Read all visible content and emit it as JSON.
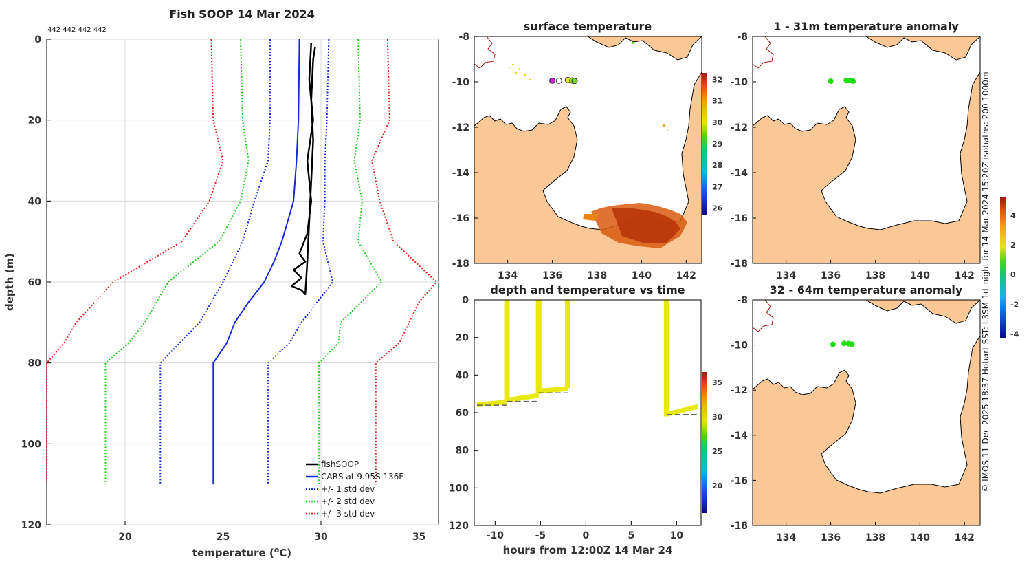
{
  "chart_data": [
    {
      "id": "profile",
      "type": "line",
      "title": "Fish SOOP 14 Mar 2024",
      "top_note": "442 442 442 442",
      "xlabel": "temperature (",
      "xlabel_sup": "o",
      "xlabel_end": "C)",
      "ylabel": "depth (m)",
      "xlim": [
        16,
        36
      ],
      "ylim": [
        0,
        120
      ],
      "xticks": [
        20,
        25,
        30,
        35
      ],
      "yticks": [
        0,
        20,
        40,
        60,
        80,
        100,
        120
      ],
      "legend": [
        "fishSOOP",
        "CARS at 9.95S 136E",
        "+/- 1 std dev",
        "+/- 2 std dev",
        "+/- 3 std dev"
      ],
      "series": [
        {
          "name": "CARS mean",
          "color": "#1428dc",
          "style": "solid",
          "points": [
            [
              28.9,
              0
            ],
            [
              28.85,
              20
            ],
            [
              28.75,
              30
            ],
            [
              28.6,
              40
            ],
            [
              28.3,
              45
            ],
            [
              28.0,
              50
            ],
            [
              27.6,
              55
            ],
            [
              27.1,
              60
            ],
            [
              26.3,
              65
            ],
            [
              25.6,
              70
            ],
            [
              25.2,
              75
            ],
            [
              24.5,
              80
            ],
            [
              24.5,
              110
            ]
          ]
        },
        {
          "name": "-1 std",
          "color": "#1428dc",
          "style": "dotted",
          "points": [
            [
              27.4,
              0
            ],
            [
              27.4,
              20
            ],
            [
              27.3,
              30
            ],
            [
              26.6,
              40
            ],
            [
              26.0,
              50
            ],
            [
              25.0,
              60
            ],
            [
              23.8,
              70
            ],
            [
              22.8,
              75
            ],
            [
              21.8,
              80
            ],
            [
              21.8,
              110
            ]
          ]
        },
        {
          "name": "+1 std",
          "color": "#1428dc",
          "style": "dotted",
          "points": [
            [
              30.4,
              0
            ],
            [
              30.3,
              20
            ],
            [
              30.2,
              30
            ],
            [
              30.2,
              40
            ],
            [
              30.1,
              50
            ],
            [
              30.6,
              60
            ],
            [
              29.0,
              70
            ],
            [
              28.4,
              75
            ],
            [
              27.3,
              80
            ],
            [
              27.3,
              110
            ]
          ]
        },
        {
          "name": "-2 std",
          "color": "#16d216",
          "style": "dotted",
          "points": [
            [
              25.9,
              0
            ],
            [
              26.0,
              20
            ],
            [
              26.3,
              30
            ],
            [
              25.9,
              40
            ],
            [
              24.8,
              50
            ],
            [
              22.2,
              60
            ],
            [
              21.0,
              70
            ],
            [
              20.2,
              75
            ],
            [
              19.0,
              80
            ],
            [
              19.0,
              110
            ]
          ]
        },
        {
          "name": "+2 std",
          "color": "#16d216",
          "style": "dotted",
          "points": [
            [
              31.9,
              0
            ],
            [
              32.0,
              20
            ],
            [
              31.7,
              30
            ],
            [
              32.1,
              40
            ],
            [
              31.9,
              50
            ],
            [
              33.1,
              60
            ],
            [
              31.0,
              70
            ],
            [
              30.9,
              75
            ],
            [
              29.9,
              80
            ],
            [
              29.9,
              110
            ]
          ]
        },
        {
          "name": "-3 std",
          "color": "#e61e1e",
          "style": "dotted",
          "points": [
            [
              24.4,
              0
            ],
            [
              24.5,
              20
            ],
            [
              25.0,
              30
            ],
            [
              24.3,
              40
            ],
            [
              22.9,
              50
            ],
            [
              19.4,
              60
            ],
            [
              17.5,
              70
            ],
            [
              16.9,
              75
            ],
            [
              16.0,
              80
            ],
            [
              16.0,
              110
            ]
          ]
        },
        {
          "name": "+3 std",
          "color": "#e61e1e",
          "style": "dotted",
          "points": [
            [
              33.4,
              0
            ],
            [
              33.5,
              20
            ],
            [
              32.6,
              30
            ],
            [
              33.0,
              40
            ],
            [
              33.7,
              50
            ],
            [
              35.9,
              60
            ],
            [
              35.0,
              65
            ],
            [
              34.0,
              75
            ],
            [
              32.8,
              80
            ],
            [
              32.8,
              110
            ]
          ]
        },
        {
          "name": "fishSOOP",
          "color": "#000000",
          "style": "solid",
          "width": 2.5,
          "points": [
            [
              29.5,
              1
            ],
            [
              29.4,
              10
            ],
            [
              29.6,
              20
            ],
            [
              29.3,
              30
            ],
            [
              29.5,
              40
            ],
            [
              29.3,
              48
            ],
            [
              28.9,
              53
            ],
            [
              29.2,
              55
            ],
            [
              28.6,
              57
            ],
            [
              29.0,
              59
            ],
            [
              28.5,
              61
            ],
            [
              29.0,
              62
            ],
            [
              29.2,
              63
            ],
            [
              29.3,
              55
            ],
            [
              29.4,
              45
            ],
            [
              29.5,
              35
            ],
            [
              29.6,
              25
            ],
            [
              29.5,
              15
            ],
            [
              29.6,
              5
            ],
            [
              29.7,
              2
            ]
          ]
        }
      ]
    },
    {
      "id": "sst",
      "type": "heatmap",
      "title": "surface temperature",
      "xlim": [
        132.5,
        142.7
      ],
      "ylim": [
        -18,
        -8
      ],
      "xticks": [
        134,
        136,
        138,
        140,
        142
      ],
      "yticks": [
        -8,
        -10,
        -12,
        -14,
        -16,
        -18
      ],
      "colorbar": {
        "min": 25.7,
        "max": 32.3,
        "ticks": [
          26,
          27,
          28,
          29,
          30,
          31,
          32
        ]
      },
      "stations": [
        [
          136.0,
          -9.95,
          "#cc22cc"
        ],
        [
          136.3,
          -9.95,
          "#ffffff"
        ],
        [
          136.7,
          -9.92,
          "#e8e820"
        ],
        [
          136.9,
          -9.94,
          "#90e020"
        ],
        [
          137.0,
          -9.96,
          "#70d830"
        ]
      ]
    },
    {
      "id": "anom1",
      "type": "scatter",
      "title": "1 - 31m temperature anomaly",
      "xlim": [
        132.5,
        142.7
      ],
      "ylim": [
        -18,
        -8
      ],
      "xticks": [
        134,
        136,
        138,
        140,
        142
      ],
      "yticks": [
        -8,
        -10,
        -12,
        -14,
        -16,
        -18
      ],
      "points": [
        [
          136.0,
          -9.97
        ],
        [
          136.7,
          -9.93
        ],
        [
          136.85,
          -9.94
        ],
        [
          137.0,
          -9.97
        ]
      ]
    },
    {
      "id": "anom2",
      "type": "scatter",
      "title": "32 - 64m temperature anomaly",
      "xlim": [
        132.5,
        142.7
      ],
      "ylim": [
        -18,
        -8
      ],
      "xticks": [
        134,
        136,
        138,
        140,
        142
      ],
      "yticks": [
        -8,
        -10,
        -12,
        -14,
        -16,
        -18
      ],
      "points": [
        [
          136.1,
          -9.97
        ],
        [
          136.6,
          -9.93
        ],
        [
          136.8,
          -9.94
        ],
        [
          136.95,
          -9.96
        ]
      ]
    },
    {
      "id": "time",
      "type": "scatter",
      "title": "depth and temperature vs time",
      "xlabel": "hours from 12:00Z 14 Mar 24",
      "xlim": [
        -12.3,
        12.7
      ],
      "ylim": [
        0,
        120
      ],
      "xticks": [
        -10,
        -5,
        0,
        5,
        10
      ],
      "yticks": [
        0,
        20,
        40,
        60,
        80,
        100,
        120
      ],
      "colorbar": {
        "min": 16,
        "max": 36.5,
        "ticks": [
          20,
          25,
          30,
          35
        ]
      },
      "casts": [
        [
          -8.7,
          54
        ],
        [
          -5.2,
          50
        ],
        [
          -2.0,
          47
        ],
        [
          8.9,
          62
        ]
      ],
      "bottom_segments": [
        [
          -12.0,
          -8.7,
          56
        ],
        [
          -8.7,
          -5.2,
          54
        ],
        [
          -5.2,
          -2.0,
          49.5
        ],
        [
          8.9,
          12.3,
          61
        ]
      ],
      "bottom_tracks": [
        [
          -12.0,
          -8.7,
          54.5,
          56
        ],
        [
          -8.7,
          -5.2,
          51,
          53.5
        ],
        [
          -5.2,
          -2.0,
          47.5,
          48.5
        ],
        [
          8.9,
          12.3,
          57,
          61
        ]
      ]
    },
    {
      "id": "anomaly_colorbar",
      "type": "heatmap",
      "min": -4.3,
      "max": 5.2,
      "ticks": [
        -4,
        -2,
        0,
        2,
        4
      ]
    }
  ],
  "credit": "© IMOS 11-Dec-2025 18:37 Hobart SST: L3SM-1d_night for 14-Mar-2024 15:20Z isobaths: 200  1000m",
  "colors": {
    "land": "#fac896",
    "coast": "#000000",
    "river": "#aa1111",
    "anom_point": "#22dd11",
    "time_point": "#e8e812",
    "dash": "#666666"
  }
}
